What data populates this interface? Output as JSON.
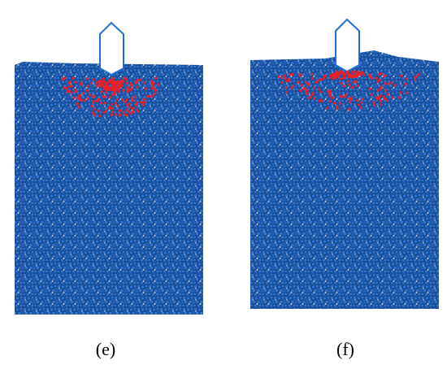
{
  "panels": [
    {
      "label": "(e)"
    },
    {
      "label": "(f)"
    }
  ]
}
